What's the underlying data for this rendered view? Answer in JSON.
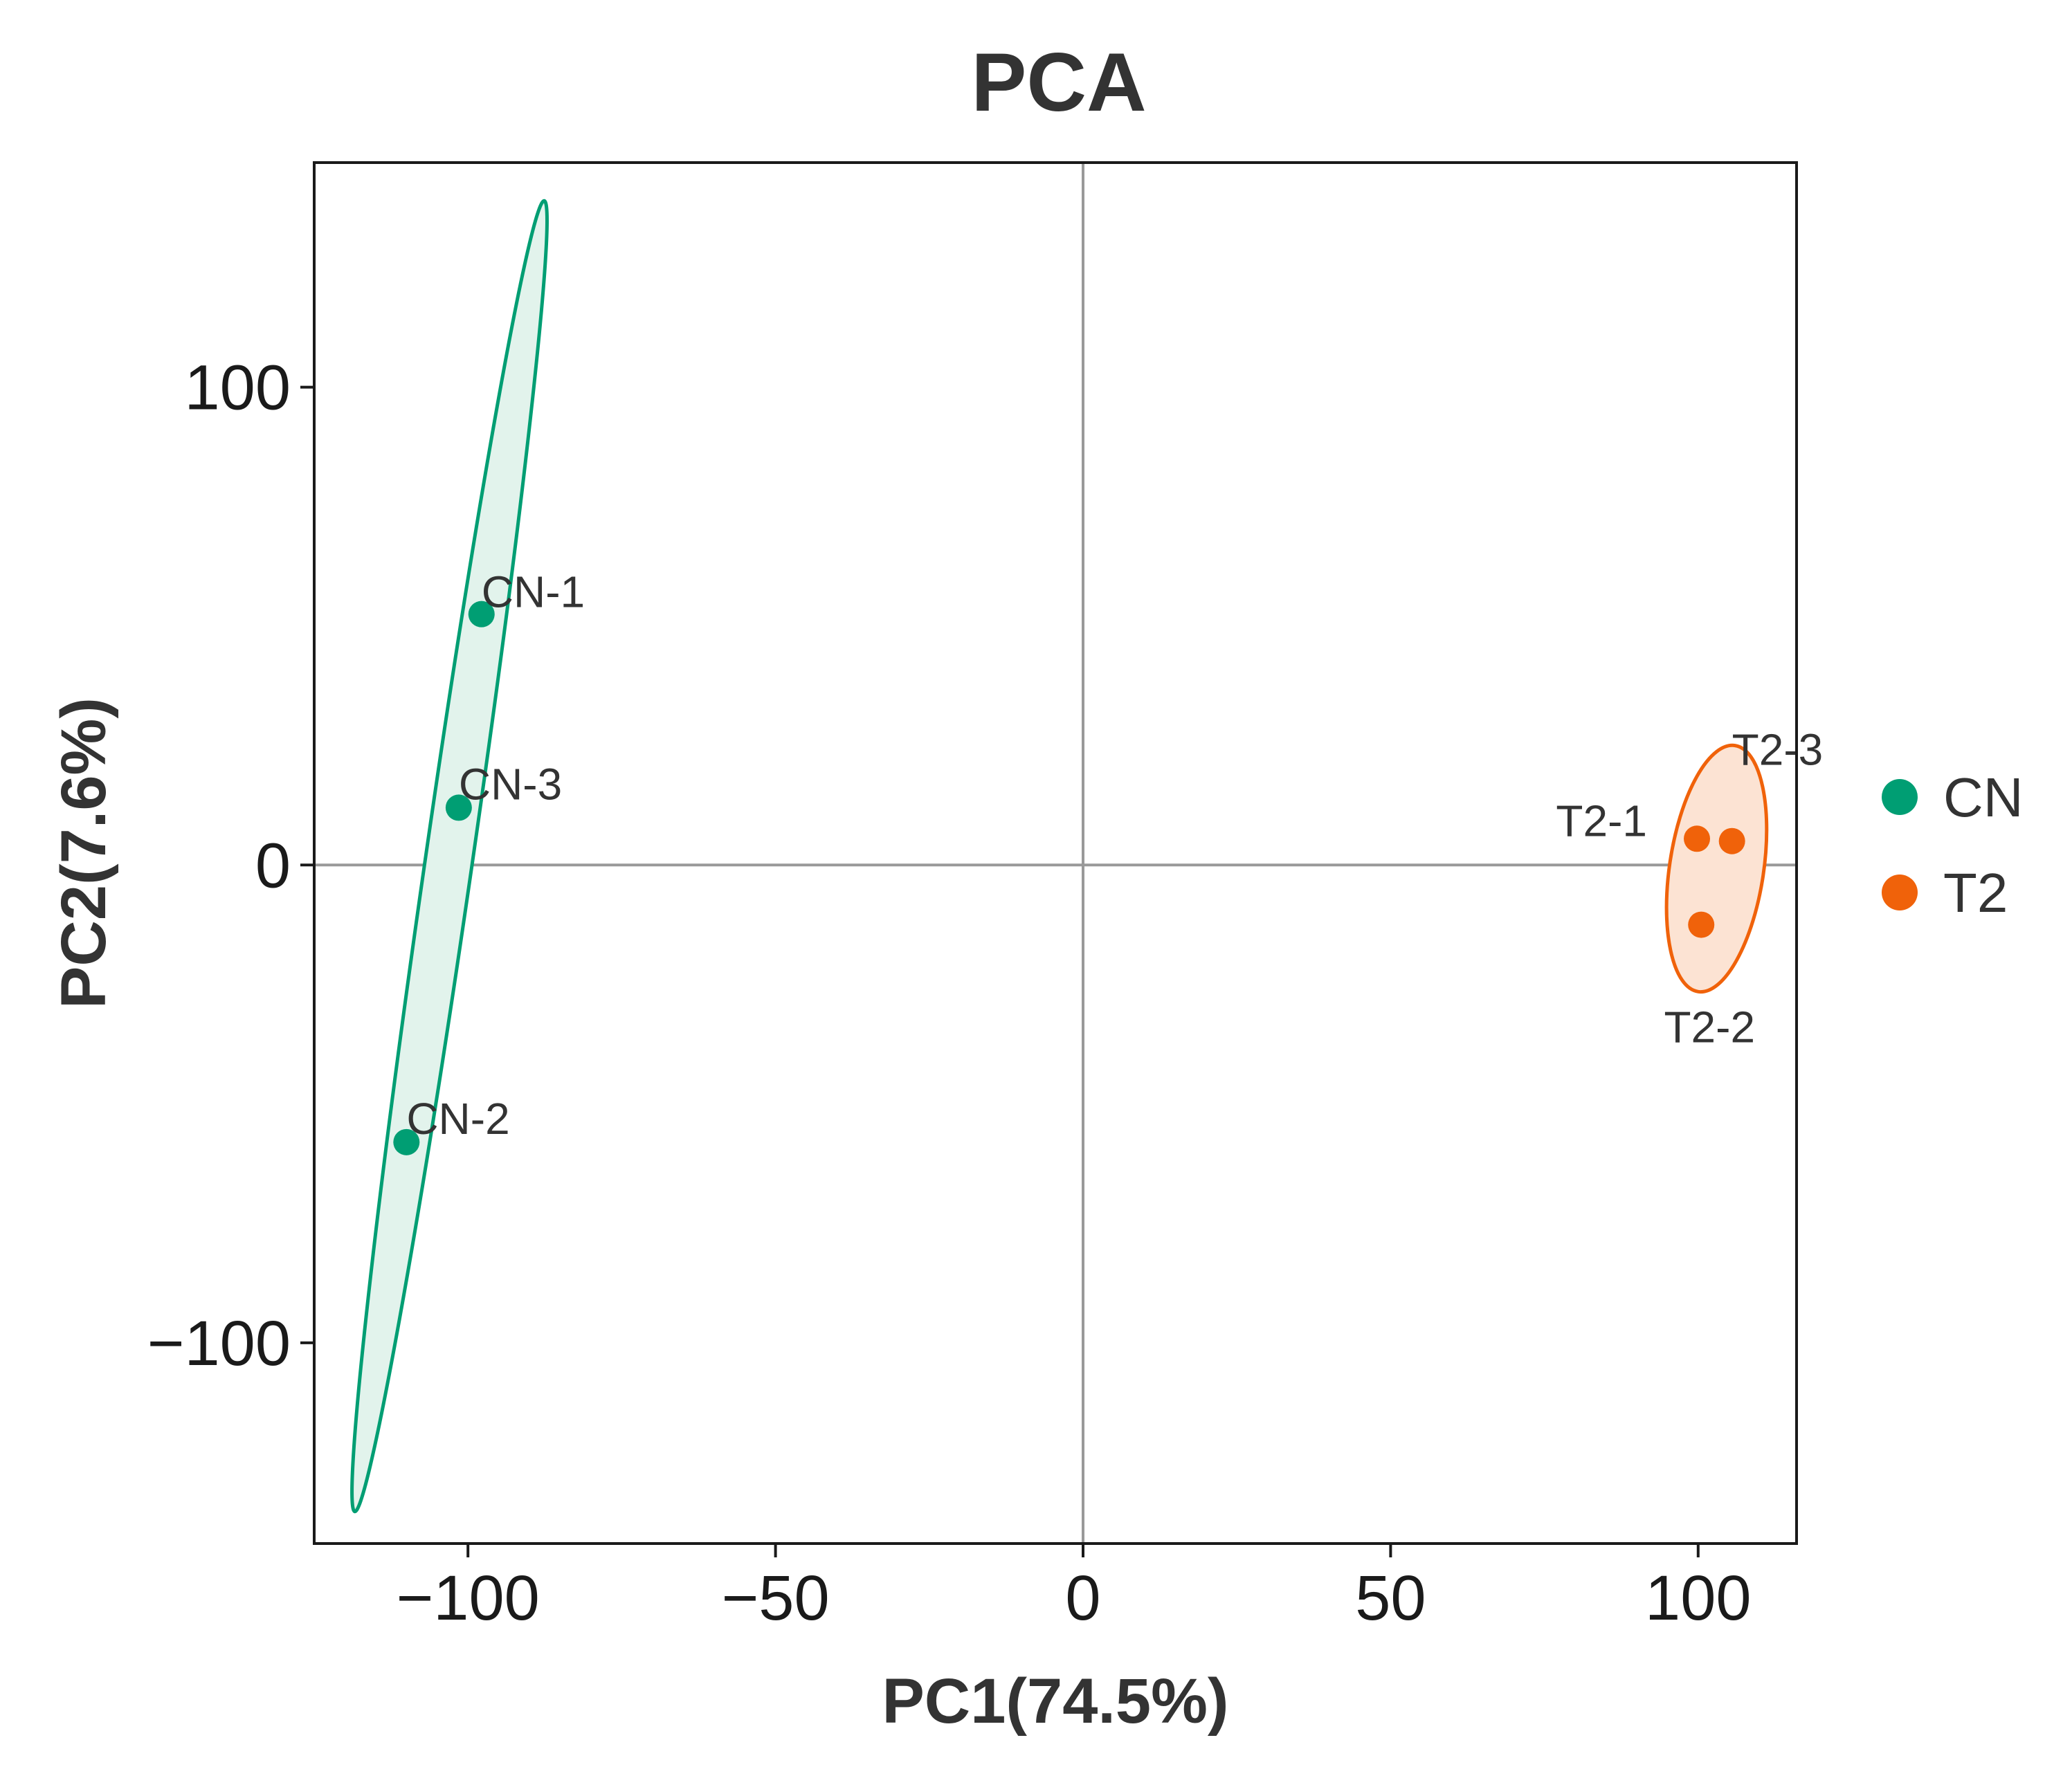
{
  "chart_data": {
    "type": "scatter",
    "title": "PCA",
    "xlabel": "PC1(74.5%)",
    "ylabel": "PC2(7.6%)",
    "xlim": [
      -125,
      116
    ],
    "ylim": [
      -142,
      147
    ],
    "xticks": [
      -100,
      -50,
      0,
      50,
      100
    ],
    "yticks": [
      -100,
      0,
      100
    ],
    "xtick_labels": [
      "−100",
      "−50",
      "0",
      "50",
      "100"
    ],
    "ytick_labels": [
      "−100",
      "0",
      "100"
    ],
    "grid": false,
    "reference_lines": {
      "x": 0,
      "y": 0
    },
    "legend_position": "right",
    "series": [
      {
        "name": "CN",
        "color": "#009E73",
        "fill": "#E2F3EC",
        "points": [
          {
            "label": "CN-1",
            "x": -97.8,
            "y": 52.5
          },
          {
            "label": "CN-2",
            "x": -110,
            "y": -58
          },
          {
            "label": "CN-3",
            "x": -101.5,
            "y": 12
          }
        ],
        "ellipse": [
          [
            -87.6,
            139
          ],
          [
            -118.4,
            -135.3
          ]
        ]
      },
      {
        "name": "T2",
        "color": "#F0620A",
        "fill": "#FCE3D3",
        "points": [
          {
            "label": "T2-1",
            "x": 99.8,
            "y": 5.5
          },
          {
            "label": "T2-2",
            "x": 100.5,
            "y": -12.5
          },
          {
            "label": "T2-3",
            "x": 105.5,
            "y": 5
          }
        ],
        "ellipse": [
          [
            106,
            25
          ],
          [
            100,
            -26.5
          ]
        ]
      }
    ]
  }
}
